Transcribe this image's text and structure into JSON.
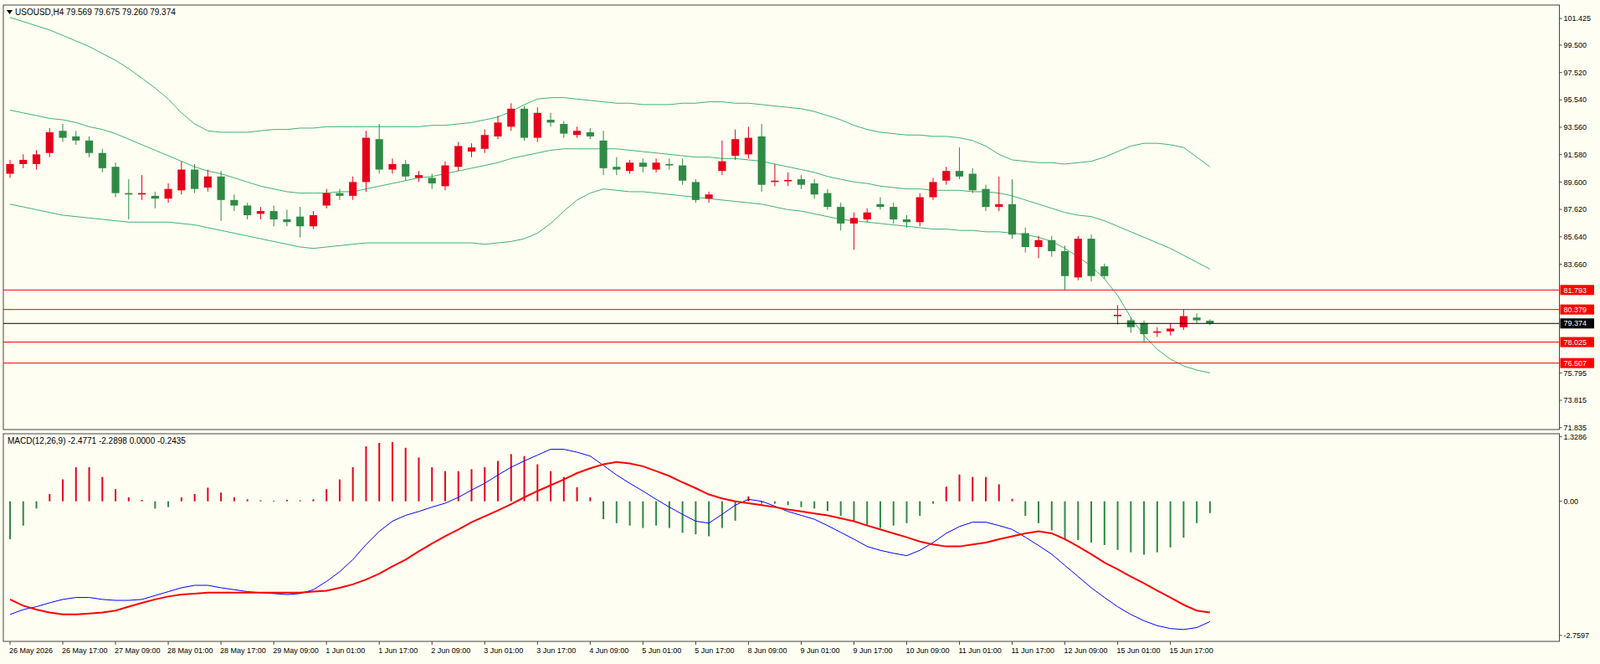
{
  "chart_data": [
    {
      "type": "candlestick",
      "title": "USOUSD,H4 79.569 79.675 79.260 79.374",
      "open": [
        90.2,
        90.9,
        90.9,
        91.7,
        93.3,
        92.9,
        92.6,
        91.7,
        90.7,
        88.8,
        88.7,
        88.6,
        88.4,
        89.0,
        90.5,
        89.2,
        90.0,
        88.3,
        87.9,
        87.3,
        87.5,
        86.9,
        87.1,
        86.4,
        87.9,
        88.8,
        88.6,
        89.6,
        92.7,
        90.5,
        90.9,
        89.9,
        89.9,
        89.3,
        90.7,
        91.8,
        92.0,
        92.9,
        93.6,
        94.9,
        92.8,
        94.1,
        93.8,
        93.0,
        93.2,
        92.6,
        90.7,
        90.4,
        91.0,
        90.5,
        90.9,
        90.8,
        89.6,
        88.4,
        90.4,
        91.5,
        91.6,
        92.9,
        89.6,
        89.65,
        89.8,
        89.5,
        88.8,
        87.8,
        86.6,
        86.9,
        88.0,
        87.8,
        86.9,
        86.7,
        88.5,
        89.7,
        90.4,
        90.2,
        89.1,
        87.8,
        88.0,
        85.9,
        84.9,
        85.4,
        84.6,
        82.7,
        85.5,
        83.5,
        79.9,
        79.6,
        79.4,
        78.7,
        78.8,
        79.1,
        79.8,
        79.569
      ],
      "high": [
        91.2,
        91.6,
        91.9,
        93.5,
        93.8,
        93.3,
        92.9,
        92.0,
        91.0,
        89.8,
        90.1,
        88.9,
        89.5,
        91.1,
        90.9,
        90.5,
        90.4,
        88.7,
        88.1,
        87.8,
        87.9,
        87.6,
        87.8,
        87.5,
        89.1,
        89.1,
        90.0,
        93.3,
        93.8,
        91.3,
        91.2,
        90.4,
        90.2,
        91.1,
        92.5,
        92.4,
        93.4,
        94.4,
        95.3,
        95.1,
        95.0,
        94.6,
        94.0,
        93.6,
        93.5,
        93.3,
        91.4,
        91.2,
        91.3,
        91.3,
        91.3,
        91.3,
        89.8,
        88.9,
        92.6,
        93.4,
        93.6,
        93.8,
        90.9,
        90.3,
        90.1,
        89.8,
        89.1,
        88.1,
        87.4,
        87.7,
        88.5,
        88.1,
        87.2,
        88.8,
        89.9,
        90.7,
        92.1,
        90.6,
        89.4,
        90.0,
        89.8,
        86.3,
        85.7,
        85.7,
        85.0,
        85.7,
        85.8,
        83.7,
        80.7,
        79.8,
        79.6,
        79.1,
        79.4,
        80.4,
        80.1,
        79.675
      ],
      "low": [
        89.9,
        90.6,
        90.5,
        91.4,
        92.5,
        92.3,
        91.4,
        90.3,
        88.5,
        86.9,
        88.3,
        87.7,
        88.1,
        88.7,
        88.8,
        88.9,
        86.8,
        87.5,
        86.9,
        86.9,
        86.4,
        86.4,
        85.6,
        86.2,
        87.7,
        88.3,
        88.3,
        88.9,
        90.2,
        90.2,
        89.7,
        89.6,
        89.1,
        89.0,
        90.4,
        91.4,
        91.7,
        92.7,
        93.3,
        92.6,
        92.5,
        93.6,
        92.8,
        92.8,
        92.7,
        90.1,
        90.1,
        90.2,
        90.3,
        90.3,
        90.5,
        89.4,
        88.1,
        88.1,
        90.1,
        91.2,
        91.3,
        88.9,
        89.3,
        89.3,
        89.1,
        88.4,
        87.6,
        86.1,
        84.7,
        86.7,
        87.6,
        86.6,
        86.3,
        86.4,
        88.3,
        89.4,
        89.8,
        88.8,
        87.5,
        87.5,
        85.5,
        84.5,
        84.1,
        84.2,
        81.8,
        82.5,
        82.4,
        82.6,
        79.3,
        78.7,
        78.0,
        78.4,
        78.5,
        78.9,
        79.4,
        79.26
      ],
      "close": [
        90.9,
        91.2,
        91.6,
        93.2,
        92.8,
        92.6,
        91.7,
        90.6,
        88.8,
        88.7,
        88.8,
        88.4,
        89.1,
        90.5,
        89.1,
        90.0,
        88.3,
        87.9,
        87.2,
        87.5,
        86.9,
        86.7,
        86.4,
        87.2,
        88.8,
        88.6,
        89.6,
        92.8,
        90.5,
        90.9,
        90.0,
        90.1,
        89.5,
        90.8,
        92.2,
        92.1,
        93.0,
        93.9,
        94.9,
        92.8,
        94.6,
        93.9,
        93.1,
        93.3,
        92.9,
        90.6,
        90.5,
        91.0,
        90.7,
        91.0,
        90.8,
        89.7,
        88.3,
        88.7,
        91.1,
        92.7,
        92.8,
        89.4,
        89.7,
        89.75,
        89.4,
        88.7,
        87.8,
        86.6,
        87.0,
        87.4,
        87.8,
        86.9,
        86.7,
        88.5,
        89.6,
        90.4,
        90.0,
        89.0,
        87.8,
        88.0,
        85.8,
        84.9,
        85.4,
        84.6,
        82.8,
        85.5,
        82.8,
        82.8,
        80.0,
        79.1,
        78.6,
        78.8,
        79.0,
        79.9,
        79.6,
        79.374
      ],
      "series": [
        {
          "type": "line",
          "color": "#3cb371",
          "values": [
            101.5,
            101.2,
            100.9,
            100.6,
            100.2,
            99.8,
            99.4,
            98.9,
            98.4,
            97.8,
            97.1,
            96.4,
            95.6,
            94.6,
            93.8,
            93.3,
            93.2,
            93.2,
            93.2,
            93.3,
            93.4,
            93.4,
            93.5,
            93.5,
            93.6,
            93.6,
            93.6,
            93.6,
            93.6,
            93.6,
            93.6,
            93.6,
            93.7,
            93.7,
            93.8,
            93.9,
            94.1,
            94.3,
            94.7,
            95.2,
            95.6,
            95.7,
            95.7,
            95.6,
            95.5,
            95.4,
            95.3,
            95.3,
            95.2,
            95.2,
            95.2,
            95.3,
            95.3,
            95.4,
            95.4,
            95.3,
            95.3,
            95.2,
            95.1,
            95.0,
            94.9,
            94.7,
            94.4,
            94.1,
            93.7,
            93.4,
            93.2,
            93.1,
            93.0,
            93.0,
            92.9,
            92.9,
            92.8,
            92.6,
            92.2,
            91.6,
            91.2,
            91.1,
            91.0,
            91.0,
            90.9,
            91.0,
            91.1,
            91.4,
            91.8,
            92.2,
            92.4,
            92.4,
            92.3,
            92.1,
            91.4,
            90.7
          ]
        },
        {
          "type": "line",
          "color": "#3cb371",
          "values": [
            94.8,
            94.6,
            94.4,
            94.2,
            94.1,
            93.9,
            93.6,
            93.4,
            93.1,
            92.7,
            92.3,
            91.9,
            91.5,
            91.1,
            90.7,
            90.4,
            90.2,
            89.9,
            89.6,
            89.3,
            89.1,
            88.9,
            88.8,
            88.8,
            88.8,
            88.9,
            88.9,
            89.1,
            89.3,
            89.5,
            89.7,
            89.9,
            90.0,
            90.2,
            90.4,
            90.6,
            90.8,
            91.0,
            91.3,
            91.5,
            91.7,
            91.9,
            92.0,
            92.0,
            92.0,
            92.0,
            92.0,
            91.9,
            91.8,
            91.7,
            91.6,
            91.5,
            91.4,
            91.4,
            91.3,
            91.3,
            91.2,
            91.1,
            90.9,
            90.7,
            90.5,
            90.3,
            90.0,
            89.8,
            89.6,
            89.5,
            89.3,
            89.2,
            89.1,
            89.1,
            89.0,
            89.0,
            89.0,
            88.9,
            88.9,
            88.8,
            88.6,
            88.3,
            88.0,
            87.7,
            87.4,
            87.2,
            87.1,
            86.8,
            86.4,
            86.0,
            85.6,
            85.2,
            84.8,
            84.3,
            83.8,
            83.3
          ]
        },
        {
          "type": "line",
          "color": "#3cb371",
          "values": [
            88.0,
            87.8,
            87.6,
            87.4,
            87.2,
            87.1,
            87.0,
            86.9,
            86.8,
            86.7,
            86.7,
            86.7,
            86.7,
            86.6,
            86.5,
            86.3,
            86.1,
            85.9,
            85.7,
            85.5,
            85.3,
            85.1,
            84.9,
            84.8,
            84.9,
            85.0,
            85.1,
            85.2,
            85.2,
            85.2,
            85.2,
            85.2,
            85.2,
            85.2,
            85.2,
            85.2,
            85.1,
            85.2,
            85.3,
            85.5,
            85.9,
            86.6,
            87.5,
            88.3,
            88.8,
            89.1,
            89.0,
            88.9,
            88.9,
            88.8,
            88.7,
            88.6,
            88.5,
            88.4,
            88.3,
            88.2,
            88.1,
            88.0,
            87.8,
            87.6,
            87.5,
            87.3,
            87.1,
            86.9,
            86.8,
            86.7,
            86.6,
            86.5,
            86.4,
            86.3,
            86.2,
            86.2,
            86.1,
            86.1,
            86.0,
            86.0,
            85.9,
            85.8,
            85.6,
            85.3,
            84.8,
            84.2,
            83.5,
            82.6,
            81.4,
            79.8,
            78.5,
            77.5,
            76.8,
            76.3,
            76.0,
            75.8
          ]
        }
      ],
      "hlines": [
        {
          "value": 81.793,
          "color": "#ff0000"
        },
        {
          "value": 80.379,
          "color": "#ff0000"
        },
        {
          "value": 79.374,
          "color": "#000000"
        },
        {
          "value": 78.025,
          "color": "#ff0000"
        },
        {
          "value": 76.507,
          "color": "#ff0000"
        }
      ],
      "ylim": [
        71.7,
        102.4
      ],
      "yticks": [
        101.425,
        {
          "value": 99.5,
          "label": "99.500"
        },
        {
          "value": 97.52,
          "label": "97.520"
        },
        {
          "value": 95.54,
          "label": "95.540"
        },
        {
          "value": 93.56,
          "label": "93.560"
        },
        {
          "value": 91.58,
          "label": "91.580"
        },
        {
          "value": 89.6,
          "label": "89.600"
        },
        {
          "value": 87.62,
          "label": "87.620"
        },
        {
          "value": 85.64,
          "label": "85.640"
        },
        {
          "value": 83.66,
          "label": "83.660"
        },
        75.795,
        73.815,
        71.835
      ],
      "grid": false,
      "tick_labels": "y"
    },
    {
      "type": "line",
      "title": "MACD(12,26,9) -2.4771 -2.2898 0.0000 -0.2435",
      "categories": [
        "26 May 2026",
        null,
        null,
        null,
        "26 May 17:00",
        null,
        null,
        null,
        "27 May 09:00",
        null,
        null,
        null,
        "28 May 01:00",
        null,
        null,
        null,
        "28 May 17:00",
        null,
        null,
        null,
        "29 May 09:00",
        null,
        null,
        null,
        "1 Jun 01:00",
        null,
        null,
        null,
        "1 Jun 17:00",
        null,
        null,
        null,
        "2 Jun 09:00",
        null,
        null,
        null,
        "3 Jun 01:00",
        null,
        null,
        null,
        "3 Jun 17:00",
        null,
        null,
        null,
        "4 Jun 09:00",
        null,
        null,
        null,
        "5 Jun 01:00",
        null,
        null,
        null,
        "5 Jun 17:00",
        null,
        null,
        null,
        "8 Jun 09:00",
        null,
        null,
        null,
        "9 Jun 01:00",
        null,
        null,
        null,
        "9 Jun 17:00",
        null,
        null,
        null,
        "10 Jun 09:00",
        null,
        null,
        null,
        "11 Jun 01:00",
        null,
        null,
        null,
        "11 Jun 17:00",
        null,
        null,
        null,
        "12 Jun 09:00",
        null,
        null,
        null,
        "15 Jun 01:00",
        null,
        null,
        null,
        "15 Jun 17:00",
        null,
        null,
        null
      ],
      "series": [
        {
          "type": "bar",
          "values": [
            -0.78,
            -0.5,
            -0.15,
            0.15,
            0.45,
            0.7,
            0.7,
            0.5,
            0.25,
            0.08,
            0.03,
            -0.15,
            -0.12,
            0.08,
            0.15,
            0.28,
            0.18,
            0.08,
            0.04,
            0.02,
            0.01,
            0.03,
            0.02,
            0.04,
            0.25,
            0.45,
            0.7,
            1.13,
            1.2,
            1.22,
            1.1,
            0.9,
            0.7,
            0.62,
            0.62,
            0.66,
            0.7,
            0.83,
            0.97,
            0.93,
            0.76,
            0.62,
            0.5,
            0.29,
            0.08,
            -0.37,
            -0.45,
            -0.5,
            -0.55,
            -0.5,
            -0.55,
            -0.65,
            -0.68,
            -0.72,
            -0.55,
            -0.4,
            0.1,
            -0.05,
            -0.05,
            -0.08,
            -0.12,
            -0.15,
            -0.2,
            -0.3,
            -0.4,
            -0.5,
            -0.55,
            -0.5,
            -0.45,
            -0.3,
            -0.05,
            0.3,
            0.55,
            0.5,
            0.5,
            0.35,
            0.05,
            -0.3,
            -0.45,
            -0.6,
            -0.8,
            -0.8,
            -0.85,
            -0.9,
            -1.0,
            -1.05,
            -1.1,
            -1.05,
            -0.95,
            -0.75,
            -0.45,
            -0.2435
          ]
        },
        {
          "type": "line",
          "color": "#0000ff",
          "values": [
            -2.33,
            -2.23,
            -2.17,
            -2.09,
            -2.02,
            -1.98,
            -1.98,
            -2.02,
            -2.04,
            -2.04,
            -2.02,
            -1.94,
            -1.86,
            -1.78,
            -1.73,
            -1.73,
            -1.78,
            -1.82,
            -1.86,
            -1.88,
            -1.9,
            -1.92,
            -1.9,
            -1.82,
            -1.65,
            -1.45,
            -1.2,
            -0.89,
            -0.62,
            -0.41,
            -0.29,
            -0.21,
            -0.12,
            -0.04,
            0.08,
            0.23,
            0.37,
            0.54,
            0.7,
            0.83,
            0.95,
            1.07,
            1.07,
            1.01,
            0.93,
            0.74,
            0.54,
            0.37,
            0.21,
            0.04,
            -0.12,
            -0.27,
            -0.41,
            -0.45,
            -0.27,
            -0.08,
            0.04,
            0.0,
            -0.1,
            -0.21,
            -0.29,
            -0.37,
            -0.5,
            -0.64,
            -0.78,
            -0.93,
            -1.01,
            -1.07,
            -1.12,
            -1.01,
            -0.85,
            -0.66,
            -0.52,
            -0.43,
            -0.43,
            -0.5,
            -0.58,
            -0.74,
            -0.91,
            -1.09,
            -1.32,
            -1.55,
            -1.78,
            -1.98,
            -2.17,
            -2.33,
            -2.46,
            -2.56,
            -2.62,
            -2.64,
            -2.6,
            -2.4771
          ]
        },
        {
          "type": "line",
          "color": "#ff0000",
          "values": [
            -2.02,
            -2.15,
            -2.23,
            -2.29,
            -2.33,
            -2.33,
            -2.31,
            -2.29,
            -2.25,
            -2.17,
            -2.09,
            -2.02,
            -1.96,
            -1.92,
            -1.9,
            -1.88,
            -1.88,
            -1.88,
            -1.88,
            -1.88,
            -1.88,
            -1.88,
            -1.88,
            -1.86,
            -1.84,
            -1.78,
            -1.71,
            -1.61,
            -1.49,
            -1.34,
            -1.2,
            -1.03,
            -0.87,
            -0.72,
            -0.58,
            -0.43,
            -0.31,
            -0.19,
            -0.06,
            0.08,
            0.21,
            0.33,
            0.45,
            0.58,
            0.68,
            0.76,
            0.81,
            0.78,
            0.72,
            0.62,
            0.52,
            0.39,
            0.27,
            0.14,
            0.06,
            0.0,
            -0.04,
            -0.08,
            -0.12,
            -0.17,
            -0.21,
            -0.25,
            -0.29,
            -0.35,
            -0.41,
            -0.5,
            -0.58,
            -0.66,
            -0.74,
            -0.83,
            -0.89,
            -0.93,
            -0.93,
            -0.89,
            -0.85,
            -0.78,
            -0.72,
            -0.66,
            -0.62,
            -0.66,
            -0.78,
            -0.93,
            -1.09,
            -1.26,
            -1.4,
            -1.55,
            -1.69,
            -1.84,
            -1.98,
            -2.13,
            -2.25,
            -2.2898
          ]
        }
      ],
      "ylim": [
        -2.884,
        1.39
      ],
      "yticks": [
        1.3286,
        {
          "value": 0,
          "label": "0.00"
        },
        -2.7597
      ],
      "grid": false
    }
  ]
}
